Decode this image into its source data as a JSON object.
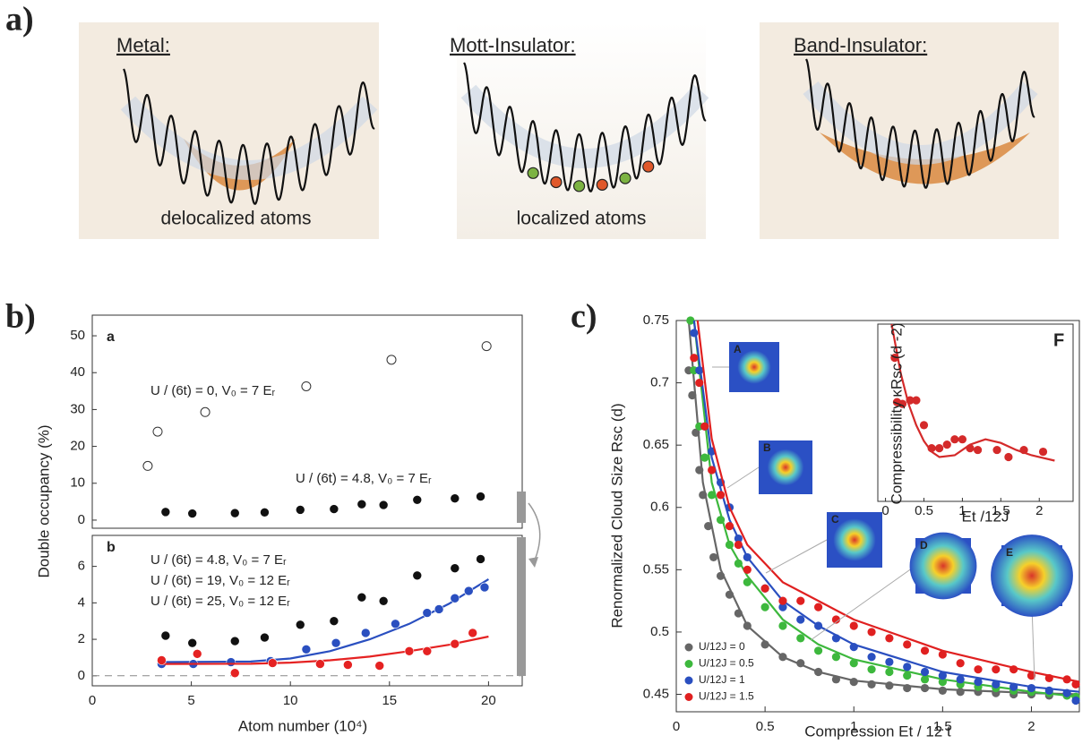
{
  "panel_labels": [
    "a)",
    "b)",
    "c)"
  ],
  "panel_a": {
    "panels": [
      {
        "title": "Metal:",
        "caption": "delocalized atoms"
      },
      {
        "title": "Mott-Insulator:",
        "caption": "localized atoms"
      },
      {
        "title": "Band-Insulator:"
      }
    ]
  },
  "chart_data": [
    {
      "type": "scatter",
      "panel_label": "a",
      "ylabel": "Double occupancy (%)",
      "xlim": [
        0,
        21.7
      ],
      "ylim": [
        -2.2,
        55.6
      ],
      "yticks": [
        0,
        10,
        20,
        30,
        40,
        50
      ],
      "annotations": [
        {
          "text": "U / (6t) = 0,  V₀ = 7 Eᵣ",
          "color": "#111"
        },
        {
          "text": "U / (6t) = 4.8,  V₀ = 7 Eᵣ",
          "color": "#111"
        }
      ],
      "series": [
        {
          "color": "#111",
          "marker": "open",
          "x": [
            2.8,
            3.3,
            5.7,
            10.8,
            15.1,
            19.9
          ],
          "values": [
            14.7,
            24,
            29.3,
            36.3,
            43.5,
            47.2
          ]
        },
        {
          "color": "#111",
          "marker": "filled",
          "x": [
            3.7,
            5.05,
            7.2,
            8.7,
            10.5,
            12.2,
            13.6,
            14.7,
            16.4,
            18.3,
            19.6
          ],
          "values": [
            2.2,
            1.8,
            1.9,
            2.1,
            2.8,
            3.0,
            4.3,
            4.1,
            5.5,
            5.9,
            6.4
          ]
        }
      ]
    },
    {
      "type": "scatter",
      "panel_label": "b",
      "xlabel": "Atom number (10⁴)",
      "xlim": [
        0,
        21.7
      ],
      "ylim": [
        -0.55,
        7.7
      ],
      "xticks": [
        0,
        5,
        10,
        15,
        20
      ],
      "yticks": [
        0,
        2,
        4,
        6
      ],
      "annotations": [
        {
          "text": "U / (6t) = 4.8,  V₀ = 7 Eᵣ",
          "color": "#111"
        },
        {
          "text": "U / (6t) = 19,  V₀ = 12 Eᵣ",
          "color": "#1d5fa8"
        },
        {
          "text": "U / (6t) = 25,  V₀ = 12 Eᵣ",
          "color": "#e02020"
        }
      ],
      "series": [
        {
          "color": "#111",
          "marker": "filled",
          "x": [
            3.7,
            5.05,
            7.2,
            8.7,
            10.5,
            12.2,
            13.6,
            14.7,
            16.4,
            18.3,
            19.6
          ],
          "values": [
            2.2,
            1.8,
            1.9,
            2.1,
            2.8,
            3.0,
            4.3,
            4.1,
            5.5,
            5.9,
            6.4
          ]
        },
        {
          "color": "#2a4fc0",
          "marker": "filled",
          "x": [
            3.5,
            5.1,
            7.0,
            9.0,
            10.8,
            12.3,
            13.8,
            15.3,
            16.9,
            17.5,
            18.3,
            19.0,
            19.8
          ],
          "values": [
            0.65,
            0.65,
            0.75,
            0.8,
            1.45,
            1.8,
            2.35,
            2.85,
            3.45,
            3.65,
            4.25,
            4.65,
            4.85
          ],
          "fit_x": [
            3.5,
            8,
            10,
            12,
            14,
            16,
            18,
            20
          ],
          "fit_values": [
            0.75,
            0.78,
            0.95,
            1.35,
            2.0,
            2.85,
            3.95,
            5.3
          ]
        },
        {
          "color": "#e52222",
          "marker": "filled",
          "x": [
            3.5,
            5.3,
            7.2,
            9.1,
            11.5,
            12.9,
            14.5,
            16.0,
            16.9,
            18.3,
            19.2
          ],
          "values": [
            0.85,
            1.2,
            0.15,
            0.7,
            0.65,
            0.6,
            0.55,
            1.35,
            1.35,
            1.75,
            2.35
          ],
          "fit_x": [
            3.5,
            8,
            10,
            12,
            14,
            16,
            18,
            20
          ],
          "fit_values": [
            0.65,
            0.66,
            0.72,
            0.85,
            1.05,
            1.35,
            1.7,
            2.15
          ]
        }
      ]
    },
    {
      "type": "scatter",
      "xlabel": "Compression Et / 12 t",
      "ylabel": "Renormalized Cloud Size Rsc (d)",
      "xlim": [
        0,
        2.27
      ],
      "ylim": [
        0.436,
        0.75
      ],
      "xticks": [
        0,
        0.5,
        1,
        1.5,
        2
      ],
      "yticks": [
        0.45,
        0.5,
        0.55,
        0.6,
        0.65,
        0.7,
        0.75
      ],
      "legend": "lower left",
      "thumbnails": [
        "A",
        "B",
        "C",
        "D",
        "E"
      ],
      "series": [
        {
          "name": "U/12J = 0",
          "color": "#666666",
          "marker": "filled",
          "x": [
            0.07,
            0.09,
            0.11,
            0.13,
            0.15,
            0.18,
            0.21,
            0.25,
            0.3,
            0.35,
            0.4,
            0.5,
            0.6,
            0.7,
            0.8,
            0.9,
            1.0,
            1.1,
            1.2,
            1.3,
            1.4,
            1.5,
            1.6,
            1.7,
            1.8,
            1.9,
            2.0,
            2.1,
            2.2
          ],
          "values": [
            0.71,
            0.69,
            0.66,
            0.63,
            0.61,
            0.585,
            0.56,
            0.545,
            0.53,
            0.515,
            0.505,
            0.49,
            0.48,
            0.475,
            0.468,
            0.462,
            0.46,
            0.458,
            0.457,
            0.455,
            0.455,
            0.453,
            0.452,
            0.452,
            0.451,
            0.45,
            0.45,
            0.449,
            0.449
          ],
          "fit_x": [
            0.07,
            0.15,
            0.25,
            0.4,
            0.6,
            0.8,
            1.0,
            1.5,
            2.0,
            2.27
          ],
          "fit_values": [
            0.75,
            0.62,
            0.55,
            0.505,
            0.48,
            0.468,
            0.461,
            0.454,
            0.451,
            0.45
          ]
        },
        {
          "name": "U/12J = 0.5",
          "color": "#3db83d",
          "marker": "filled",
          "x": [
            0.08,
            0.1,
            0.13,
            0.16,
            0.2,
            0.25,
            0.3,
            0.35,
            0.4,
            0.5,
            0.6,
            0.7,
            0.8,
            0.9,
            1.0,
            1.1,
            1.2,
            1.3,
            1.4,
            1.5,
            1.6,
            1.7,
            1.8,
            1.9,
            2.0,
            2.1,
            2.2,
            2.25
          ],
          "values": [
            0.75,
            0.71,
            0.665,
            0.64,
            0.61,
            0.59,
            0.57,
            0.555,
            0.54,
            0.52,
            0.505,
            0.495,
            0.485,
            0.48,
            0.475,
            0.47,
            0.468,
            0.465,
            0.462,
            0.46,
            0.458,
            0.456,
            0.455,
            0.453,
            0.452,
            0.451,
            0.449,
            0.448
          ],
          "fit_x": [
            0.1,
            0.2,
            0.3,
            0.4,
            0.6,
            0.8,
            1.0,
            1.5,
            2.0,
            2.27
          ],
          "fit_values": [
            0.75,
            0.62,
            0.57,
            0.545,
            0.51,
            0.49,
            0.478,
            0.462,
            0.452,
            0.448
          ]
        },
        {
          "name": "U/12J = 1",
          "color": "#2a4fc0",
          "marker": "filled",
          "x": [
            0.1,
            0.13,
            0.16,
            0.2,
            0.25,
            0.3,
            0.35,
            0.4,
            0.5,
            0.6,
            0.7,
            0.8,
            0.9,
            1.0,
            1.1,
            1.2,
            1.3,
            1.4,
            1.5,
            1.6,
            1.7,
            1.8,
            1.9,
            2.0,
            2.1,
            2.2,
            2.25
          ],
          "values": [
            0.74,
            0.71,
            0.665,
            0.645,
            0.62,
            0.6,
            0.575,
            0.56,
            0.535,
            0.52,
            0.51,
            0.505,
            0.495,
            0.488,
            0.48,
            0.476,
            0.472,
            0.468,
            0.465,
            0.462,
            0.46,
            0.458,
            0.456,
            0.455,
            0.453,
            0.451,
            0.445
          ],
          "fit_x": [
            0.1,
            0.2,
            0.3,
            0.4,
            0.6,
            0.8,
            1.0,
            1.5,
            2.0,
            2.27
          ],
          "fit_values": [
            0.75,
            0.64,
            0.59,
            0.56,
            0.525,
            0.505,
            0.49,
            0.468,
            0.456,
            0.452
          ]
        },
        {
          "name": "U/12J = 1.5",
          "color": "#e02020",
          "marker": "filled",
          "x": [
            0.1,
            0.13,
            0.16,
            0.2,
            0.25,
            0.3,
            0.35,
            0.4,
            0.5,
            0.6,
            0.7,
            0.8,
            0.9,
            1.0,
            1.1,
            1.2,
            1.3,
            1.4,
            1.5,
            1.6,
            1.7,
            1.8,
            1.9,
            2.0,
            2.1,
            2.2,
            2.25
          ],
          "values": [
            0.72,
            0.7,
            0.665,
            0.63,
            0.61,
            0.585,
            0.57,
            0.55,
            0.535,
            0.525,
            0.525,
            0.52,
            0.51,
            0.505,
            0.5,
            0.495,
            0.49,
            0.485,
            0.482,
            0.475,
            0.47,
            0.47,
            0.47,
            0.465,
            0.463,
            0.462,
            0.458
          ],
          "fit_x": [
            0.12,
            0.2,
            0.3,
            0.4,
            0.6,
            0.8,
            1.0,
            1.5,
            2.0,
            2.27
          ],
          "fit_values": [
            0.75,
            0.655,
            0.6,
            0.57,
            0.54,
            0.525,
            0.51,
            0.485,
            0.468,
            0.46
          ]
        }
      ]
    },
    {
      "type": "scatter",
      "panel_label": "F",
      "xlabel": "Et /12J",
      "ylabel": "Compressibility   κRsc (d -2)",
      "xlim": [
        -0.1,
        2.44
      ],
      "ylim": [
        0,
        10
      ],
      "xticks": [
        0,
        0.5,
        1,
        1.5,
        2
      ],
      "series": [
        {
          "color": "#d42a2a",
          "marker": "filled",
          "x": [
            0.12,
            0.15,
            0.22,
            0.32,
            0.4,
            0.5,
            0.6,
            0.7,
            0.8,
            0.9,
            1.0,
            1.1,
            1.2,
            1.45,
            1.6,
            1.8,
            2.05
          ],
          "values": [
            8.1,
            5.6,
            5.5,
            5.7,
            5.7,
            4.3,
            3.0,
            3.0,
            3.2,
            3.5,
            3.5,
            3.0,
            2.9,
            2.9,
            2.5,
            2.9,
            2.8
          ],
          "fit_x": [
            0.08,
            0.2,
            0.3,
            0.4,
            0.5,
            0.6,
            0.7,
            0.9,
            1.1,
            1.3,
            1.5,
            1.7,
            1.9,
            2.2
          ],
          "fit_values": [
            10,
            7.2,
            5.5,
            4.3,
            3.4,
            2.8,
            2.5,
            2.6,
            3.2,
            3.5,
            3.3,
            2.9,
            2.6,
            2.3
          ]
        }
      ]
    }
  ]
}
